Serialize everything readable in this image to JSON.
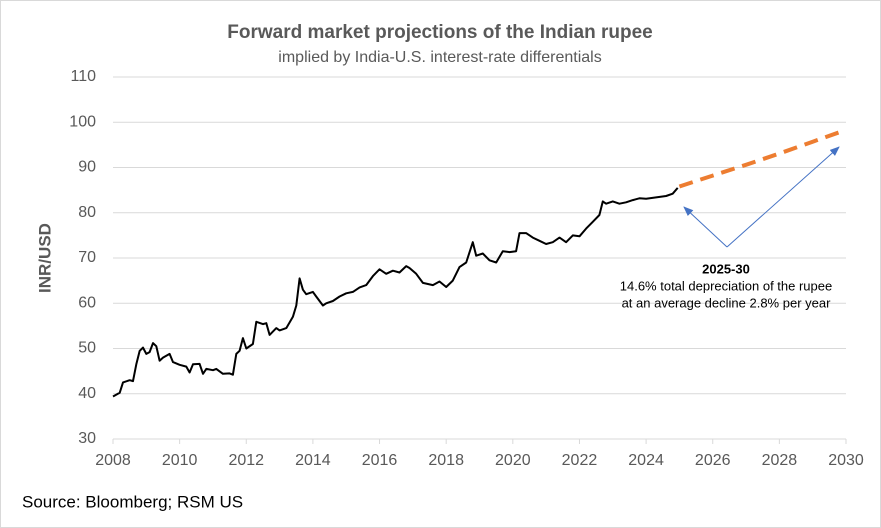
{
  "chart_data": {
    "type": "line",
    "title": "Forward market projections of the Indian rupee",
    "subtitle": "implied by India-U.S. interest-rate differentials",
    "y_label": "INR/USD",
    "source": "Source: Bloomberg; RSM US",
    "annotation": {
      "title": "2025-30",
      "lines": [
        "14.6% total depreciation of the rupee",
        "at an average decline 2.8% per year"
      ]
    },
    "xlim": [
      2008,
      2030
    ],
    "xticks": [
      2008,
      2010,
      2012,
      2014,
      2016,
      2018,
      2020,
      2022,
      2024,
      2026,
      2028,
      2030
    ],
    "ylim": [
      30,
      110
    ],
    "yticks": [
      30,
      40,
      50,
      60,
      70,
      80,
      90,
      100,
      110
    ],
    "grid": true,
    "series": [
      {
        "color": "#000000",
        "dashed": false,
        "x": [
          2008.0,
          2008.2,
          2008.3,
          2008.5,
          2008.6,
          2008.7,
          2008.8,
          2008.9,
          2009.0,
          2009.1,
          2009.2,
          2009.3,
          2009.4,
          2009.5,
          2009.7,
          2009.8,
          2010.0,
          2010.2,
          2010.3,
          2010.4,
          2010.6,
          2010.7,
          2010.8,
          2011.0,
          2011.1,
          2011.3,
          2011.5,
          2011.6,
          2011.7,
          2011.8,
          2011.9,
          2012.0,
          2012.2,
          2012.3,
          2012.5,
          2012.6,
          2012.7,
          2012.9,
          2013.0,
          2013.2,
          2013.4,
          2013.5,
          2013.6,
          2013.7,
          2013.8,
          2014.0,
          2014.1,
          2014.3,
          2014.4,
          2014.6,
          2014.8,
          2015.0,
          2015.2,
          2015.4,
          2015.6,
          2015.8,
          2016.0,
          2016.2,
          2016.4,
          2016.6,
          2016.8,
          2016.9,
          2017.1,
          2017.3,
          2017.6,
          2017.8,
          2018.0,
          2018.2,
          2018.4,
          2018.6,
          2018.8,
          2018.9,
          2019.1,
          2019.3,
          2019.5,
          2019.7,
          2019.9,
          2020.1,
          2020.2,
          2020.4,
          2020.6,
          2020.8,
          2021.0,
          2021.2,
          2021.4,
          2021.6,
          2021.8,
          2022.0,
          2022.2,
          2022.4,
          2022.6,
          2022.7,
          2022.8,
          2023.0,
          2023.2,
          2023.4,
          2023.6,
          2023.8,
          2024.0,
          2024.3,
          2024.6,
          2024.8,
          2024.95
        ],
        "values": [
          39.4,
          40.2,
          42.5,
          43,
          42.8,
          46.5,
          49.5,
          50.2,
          48.8,
          49.2,
          51.2,
          50.5,
          47.3,
          48,
          48.8,
          47,
          46.4,
          46,
          44.7,
          46.5,
          46.6,
          44.4,
          45.5,
          45.2,
          45.5,
          44.4,
          44.5,
          44.2,
          48.8,
          49.5,
          52.3,
          50,
          51,
          55.9,
          55.4,
          55.6,
          53,
          54.5,
          54,
          54.5,
          57,
          59.5,
          65.5,
          63,
          62,
          62.5,
          61.5,
          59.5,
          60,
          60.5,
          61.5,
          62.2,
          62.5,
          63.5,
          64,
          66,
          67.5,
          66.5,
          67.2,
          66.8,
          68.2,
          67.8,
          66.5,
          64.5,
          64,
          64.8,
          63.6,
          65,
          68,
          69,
          73.5,
          70.5,
          71,
          69.5,
          69,
          71.5,
          71.3,
          71.5,
          75.5,
          75.5,
          74.5,
          73.8,
          73.1,
          73.5,
          74.5,
          73.5,
          75,
          74.8,
          76.5,
          78,
          79.5,
          82.5,
          82,
          82.5,
          82,
          82.3,
          82.8,
          83.2,
          83.1,
          83.4,
          83.7,
          84.2,
          85.5
        ]
      },
      {
        "color": "#ED7D31",
        "dashed": true,
        "x": [
          2025,
          2026,
          2027,
          2028,
          2029,
          2030
        ],
        "values": [
          85.8,
          88.2,
          90.6,
          93.1,
          95.7,
          98.3
        ]
      }
    ]
  }
}
